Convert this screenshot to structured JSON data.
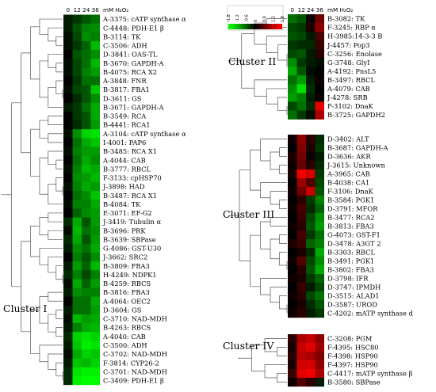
{
  "figure": {
    "columns": [
      "0",
      "12",
      "24",
      "36"
    ],
    "unit_label": "mM H₂O₂",
    "color_scale": {
      "ticks": [
        "-1.8",
        "-1.2",
        "-0.6",
        "0",
        "0.6",
        "1.2",
        "1.8"
      ],
      "values": [
        -1.8,
        -1.2,
        -0.6,
        0,
        0.6,
        1.2,
        1.8
      ],
      "colors": [
        "#00ff00",
        "#00c000",
        "#006000",
        "#000000",
        "#600000",
        "#c00000",
        "#ff0000"
      ]
    }
  },
  "clusters": [
    {
      "label": "Cluster I",
      "genes": [
        {
          "name": "A-3375: cATP synthase α",
          "values": [
            -0.2,
            -0.4,
            -0.6,
            -0.8
          ]
        },
        {
          "name": "C-4448: PDH-E1 β",
          "values": [
            -0.2,
            -0.6,
            -0.9,
            -1.0
          ]
        },
        {
          "name": "B-3114: TK",
          "values": [
            -0.1,
            -0.5,
            -1.0,
            -0.9
          ]
        },
        {
          "name": "C-3506: ADH",
          "values": [
            -0.1,
            -0.4,
            -0.7,
            -1.3
          ]
        },
        {
          "name": "D-3841: OAS-TL",
          "values": [
            0.0,
            -0.6,
            -0.8,
            -1.0
          ]
        },
        {
          "name": "B-3670: GAPDH-A",
          "values": [
            -0.1,
            -0.5,
            -0.8,
            -1.3
          ]
        },
        {
          "name": "B-4075: RCA X2",
          "values": [
            -0.1,
            -0.5,
            -0.9,
            -1.1
          ]
        },
        {
          "name": "A-3848: FNR",
          "values": [
            0.0,
            -0.4,
            -0.8,
            -0.8
          ]
        },
        {
          "name": "B-3817: FBA1",
          "values": [
            -0.1,
            -0.5,
            -0.6,
            -1.4
          ]
        },
        {
          "name": "D-3611: GS",
          "values": [
            0.0,
            -0.3,
            -0.6,
            -1.0
          ]
        },
        {
          "name": "B-3671: GAPDH-A",
          "values": [
            -0.2,
            -0.4,
            -0.8,
            -1.2
          ]
        },
        {
          "name": "B-3549: RCA",
          "values": [
            0.0,
            -0.4,
            -0.6,
            -1.2
          ]
        },
        {
          "name": "B-4441: RCA1",
          "values": [
            0.0,
            -0.3,
            -0.6,
            -1.1
          ]
        },
        {
          "name": "A-3104: cATP synthase α",
          "values": [
            -0.1,
            -1.0,
            -1.5,
            -1.6
          ]
        },
        {
          "name": "I-4001: PAP6",
          "values": [
            0.0,
            -0.8,
            -1.2,
            -1.4
          ]
        },
        {
          "name": "B-3485: RCA X1",
          "values": [
            -0.1,
            -0.9,
            -1.1,
            -1.1
          ]
        },
        {
          "name": "A-4044: CAB",
          "values": [
            0.0,
            -0.8,
            -1.2,
            -1.0
          ]
        },
        {
          "name": "B-3777: RBCL",
          "values": [
            -0.1,
            -0.9,
            -1.3,
            -1.2
          ]
        },
        {
          "name": "F-3133: cpHSP70",
          "values": [
            0.0,
            -1.0,
            -1.1,
            -1.3
          ]
        },
        {
          "name": "J-3898: HAD",
          "values": [
            -0.1,
            -0.9,
            -1.2,
            -1.1
          ]
        },
        {
          "name": "B-3487: RCA X1",
          "values": [
            0.0,
            -0.8,
            -1.0,
            -1.4
          ]
        },
        {
          "name": "B-4084: TK",
          "values": [
            -0.1,
            -0.9,
            -0.9,
            -1.2
          ]
        },
        {
          "name": "E-3071: EF-G2",
          "values": [
            0.0,
            -0.7,
            -1.0,
            -1.1
          ]
        },
        {
          "name": "J-3419: Tubulin α",
          "values": [
            -0.3,
            -1.2,
            -0.6,
            -1.1
          ]
        },
        {
          "name": "B-3696: PRK",
          "values": [
            -0.1,
            -1.3,
            -0.8,
            -1.0
          ]
        },
        {
          "name": "B-3639: SBPase",
          "values": [
            -0.3,
            -1.2,
            -0.6,
            -1.1
          ]
        },
        {
          "name": "G-4086: GST-U30",
          "values": [
            -0.2,
            -1.0,
            -0.8,
            -1.2
          ]
        },
        {
          "name": "J-3662: SRC2",
          "values": [
            0.0,
            -0.9,
            -0.6,
            -1.0
          ]
        },
        {
          "name": "B-3809: FBA3",
          "values": [
            -0.2,
            -1.1,
            -0.7,
            -1.3
          ]
        },
        {
          "name": "H-4249: NDPK1",
          "values": [
            -0.3,
            -0.9,
            -0.5,
            -0.9
          ]
        },
        {
          "name": "B-4259: RBCS",
          "values": [
            -0.1,
            -1.2,
            -0.7,
            -1.1
          ]
        },
        {
          "name": "B-3816: FBA3",
          "values": [
            -0.2,
            -1.0,
            -0.9,
            -0.9
          ]
        },
        {
          "name": "A-4064: OEC2",
          "values": [
            0.0,
            -0.8,
            -0.8,
            -1.2
          ]
        },
        {
          "name": "D-3604: GS",
          "values": [
            -0.2,
            -0.8,
            -0.8,
            -1.1
          ]
        },
        {
          "name": "C-3710: NAD-MDH",
          "values": [
            -0.1,
            -1.3,
            -1.1,
            -1.2
          ]
        },
        {
          "name": "B-4263: RBCS",
          "values": [
            -0.2,
            -0.9,
            -1.2,
            -1.3
          ]
        },
        {
          "name": "A-4040: CAB",
          "values": [
            -0.3,
            -1.5,
            -1.6,
            -1.5
          ]
        },
        {
          "name": "C-3500: ADH",
          "values": [
            -0.2,
            -1.4,
            -1.7,
            -1.6
          ]
        },
        {
          "name": "C-3702: NAD-MDH",
          "values": [
            -0.1,
            -1.2,
            -1.5,
            -1.4
          ]
        },
        {
          "name": "F-3814: CYP26-2",
          "values": [
            -0.2,
            -1.4,
            -1.3,
            -1.5
          ]
        },
        {
          "name": "C-3701: NAD-MDH",
          "values": [
            -0.3,
            -1.6,
            -1.7,
            -1.7
          ]
        },
        {
          "name": "C-3409: PDH-E1 β",
          "values": [
            -0.3,
            -1.7,
            -1.8,
            -1.8
          ]
        }
      ]
    },
    {
      "label": "Cluster II",
      "genes": [
        {
          "name": "B-3082: TK",
          "values": [
            -0.8,
            -0.6,
            0.1,
            0.8
          ]
        },
        {
          "name": "F-3245: RBP α",
          "values": [
            -0.5,
            -0.4,
            0.2,
            1.0
          ]
        },
        {
          "name": "H-3985:14-3-3 B",
          "values": [
            -0.6,
            -0.5,
            -0.2,
            0.5
          ]
        },
        {
          "name": "J-4457: Pop3",
          "values": [
            -0.4,
            -0.3,
            -0.3,
            0.4
          ]
        },
        {
          "name": "C-3256: Enolase",
          "values": [
            -0.5,
            -0.6,
            -0.2,
            0.3
          ]
        },
        {
          "name": "G-3748: GlyI",
          "values": [
            -1.0,
            -0.4,
            -0.2,
            -0.1
          ]
        },
        {
          "name": "A-4192: PnsL5",
          "values": [
            -1.2,
            -0.6,
            -0.1,
            0.0
          ]
        },
        {
          "name": "B-3497: RBCL",
          "values": [
            -0.8,
            -1.1,
            -0.2,
            0.1
          ]
        },
        {
          "name": "A-4079: CAB",
          "values": [
            -1.0,
            -1.6,
            -0.3,
            0.0
          ]
        },
        {
          "name": "J-4278: SRB",
          "values": [
            -1.1,
            -0.9,
            -0.2,
            0.1
          ]
        },
        {
          "name": "F-3102: DnaK",
          "values": [
            -0.5,
            -0.8,
            -0.3,
            1.6
          ]
        },
        {
          "name": "B-3725: GAPDH2",
          "values": [
            -0.8,
            -0.4,
            -0.1,
            1.2
          ]
        }
      ]
    },
    {
      "label": "Cluster III",
      "genes": [
        {
          "name": "D-3402: ALT",
          "values": [
            0.1,
            1.0,
            0.3,
            -0.3
          ]
        },
        {
          "name": "B-3687: GAPDH-A",
          "values": [
            0.0,
            0.9,
            0.2,
            -0.4
          ]
        },
        {
          "name": "D-3636: AKR",
          "values": [
            0.2,
            0.8,
            0.1,
            -0.2
          ]
        },
        {
          "name": "J-3615: Unknown",
          "values": [
            0.1,
            0.7,
            0.3,
            -0.3
          ]
        },
        {
          "name": "A-3965: CAB",
          "values": [
            0.2,
            1.7,
            1.5,
            -0.4
          ]
        },
        {
          "name": "B-4038: CA1",
          "values": [
            0.0,
            1.1,
            0.6,
            -0.5
          ]
        },
        {
          "name": "F-3106: DnaK",
          "values": [
            0.1,
            0.8,
            1.4,
            -0.6
          ]
        },
        {
          "name": "B-3584: PGK1",
          "values": [
            0.0,
            0.3,
            -0.4,
            -0.9
          ]
        },
        {
          "name": "D-3791: MFOR",
          "values": [
            0.1,
            0.5,
            -0.3,
            -0.7
          ]
        },
        {
          "name": "B-3477: RCA2",
          "values": [
            0.0,
            0.4,
            -0.5,
            -1.0
          ]
        },
        {
          "name": "B-3813: FBA3",
          "values": [
            0.1,
            0.3,
            -0.6,
            -1.1
          ]
        },
        {
          "name": "G-4073: GST-F1",
          "values": [
            0.0,
            0.5,
            -0.4,
            -0.8
          ]
        },
        {
          "name": "D-3478: A3GT 2",
          "values": [
            0.2,
            0.4,
            -0.7,
            -0.9
          ]
        },
        {
          "name": "B-3303: RBCL",
          "values": [
            0.0,
            0.2,
            -0.3,
            -1.2
          ]
        },
        {
          "name": "B-3491: PGK1",
          "values": [
            0.1,
            0.6,
            -0.5,
            -1.0
          ]
        },
        {
          "name": "B-3802: FBA3",
          "values": [
            0.0,
            0.3,
            -0.6,
            -1.2
          ]
        },
        {
          "name": "D-3798: IFR",
          "values": [
            0.1,
            0.2,
            -0.4,
            -0.7
          ]
        },
        {
          "name": "D-3747: IPMDH",
          "values": [
            0.0,
            0.4,
            -0.2,
            -0.5
          ]
        },
        {
          "name": "D-3515: ALAD1",
          "values": [
            0.1,
            0.3,
            -0.5,
            -0.8
          ]
        },
        {
          "name": "D-3587: UROD",
          "values": [
            0.0,
            0.2,
            -0.3,
            -0.6
          ]
        },
        {
          "name": "C-4202: mATP synthase d",
          "values": [
            0.1,
            0.3,
            -0.2,
            -0.4
          ]
        }
      ]
    },
    {
      "label": "Cluster IV",
      "genes": [
        {
          "name": "C-3208: PGM",
          "values": [
            0.3,
            1.2,
            1.4,
            1.0
          ]
        },
        {
          "name": "F-4395: HSC80",
          "values": [
            0.2,
            1.4,
            1.6,
            1.1
          ]
        },
        {
          "name": "F-4398: HSP90",
          "values": [
            0.3,
            1.3,
            1.2,
            0.9
          ]
        },
        {
          "name": "F-4397: HSP90",
          "values": [
            0.2,
            1.5,
            1.5,
            1.0
          ]
        },
        {
          "name": "C-4417: mATP synthase β",
          "values": [
            0.4,
            1.6,
            1.7,
            1.2
          ]
        },
        {
          "name": "B-3580: SBPase",
          "values": [
            0.1,
            0.6,
            0.3,
            -0.2
          ]
        }
      ]
    }
  ]
}
